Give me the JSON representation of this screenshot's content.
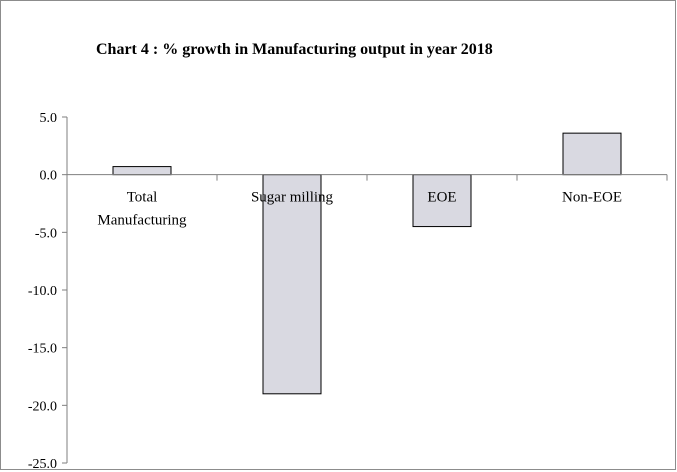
{
  "chart_data": {
    "type": "bar",
    "title": "Chart 4 : % growth in Manufacturing output in year 2018",
    "categories": [
      "Total Manufacturing",
      "Sugar milling",
      "EOE",
      "Non-EOE"
    ],
    "category_lines": [
      [
        "Total",
        "Manufacturing"
      ],
      [
        "Sugar milling"
      ],
      [
        "EOE"
      ],
      [
        "Non-EOE"
      ]
    ],
    "values": [
      0.7,
      -19.0,
      -4.5,
      3.6
    ],
    "xlabel": "",
    "ylabel": "",
    "ylim": [
      -25.0,
      5.0
    ],
    "yticks": [
      "5.0",
      "0.0",
      "-5.0",
      "-10.0",
      "-15.0",
      "-20.0",
      "-25.0"
    ],
    "grid": false,
    "bar_color": "#d9d9e1",
    "bar_edge_color": "#000000",
    "axis_color": "#7f7f7f"
  }
}
